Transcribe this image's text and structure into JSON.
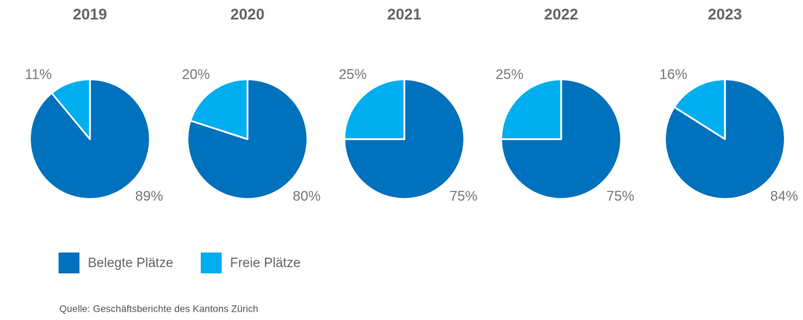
{
  "chart_data": [
    {
      "type": "pie",
      "title": "2019",
      "values": [
        89,
        11
      ],
      "value_labels": [
        "89%",
        "11%"
      ]
    },
    {
      "type": "pie",
      "title": "2020",
      "values": [
        80,
        20
      ],
      "value_labels": [
        "80%",
        "20%"
      ]
    },
    {
      "type": "pie",
      "title": "2021",
      "values": [
        75,
        25
      ],
      "value_labels": [
        "75%",
        "25%"
      ]
    },
    {
      "type": "pie",
      "title": "2022",
      "values": [
        75,
        25
      ],
      "value_labels": [
        "75%",
        "25%"
      ]
    },
    {
      "type": "pie",
      "title": "2023",
      "values": [
        84,
        16
      ],
      "value_labels": [
        "84%",
        "16%"
      ]
    }
  ],
  "legend": {
    "items": [
      {
        "label": "Belegte Plätze",
        "color": "#0071bc"
      },
      {
        "label": "Freie Plätze",
        "color": "#00aeef"
      }
    ]
  },
  "source": "Quelle: Geschäftsberichte des Kantons Zürich"
}
